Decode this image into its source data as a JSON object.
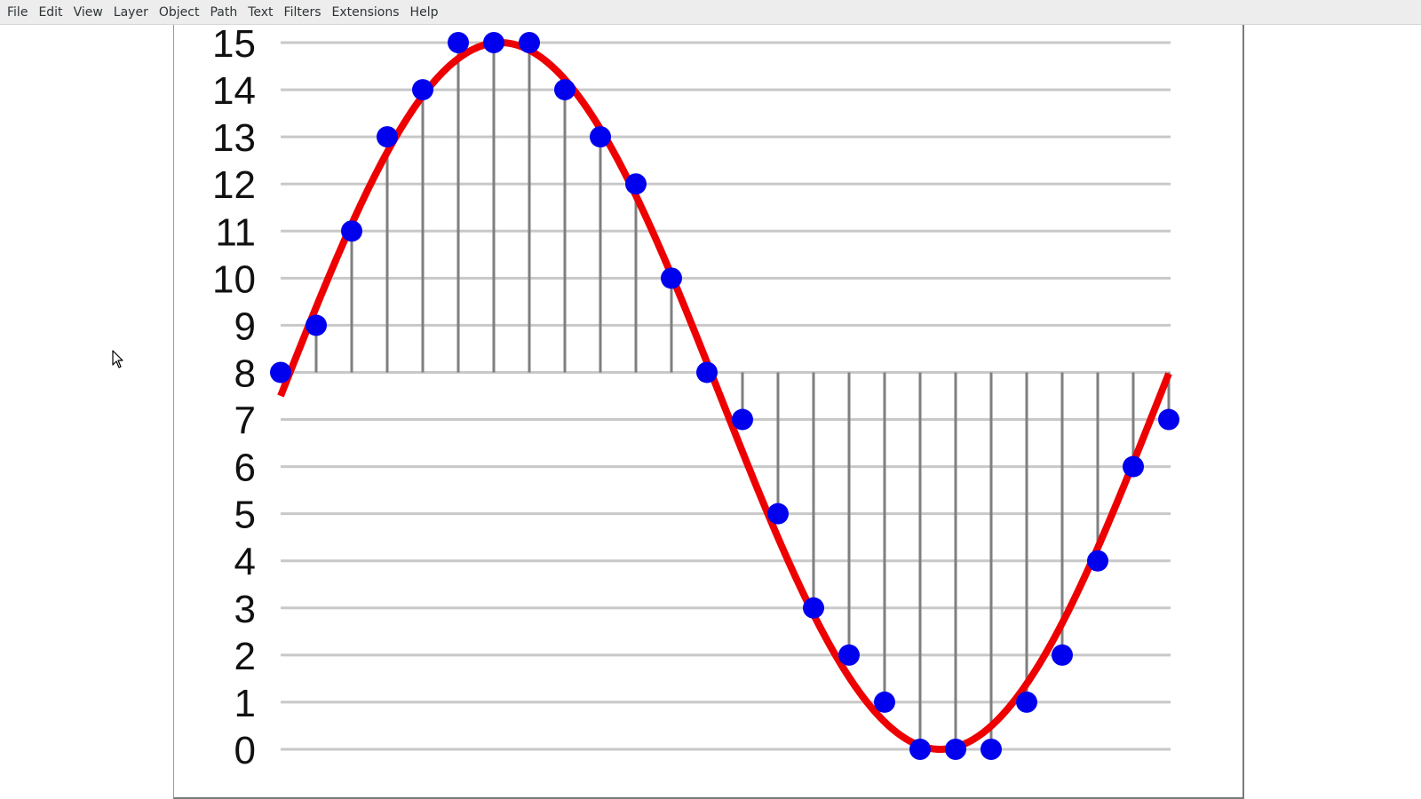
{
  "menubar": {
    "items": [
      "File",
      "Edit",
      "View",
      "Layer",
      "Object",
      "Path",
      "Text",
      "Filters",
      "Extensions",
      "Help"
    ]
  },
  "icons": {
    "cursor": "mouse-pointer-icon"
  },
  "colors": {
    "curve": "#ee0000",
    "points": "#0000ee",
    "stems": "#7f7f7f",
    "grid": "#c8c8c8"
  },
  "chart_data": {
    "type": "line",
    "title": "",
    "xlabel": "",
    "ylabel": "",
    "ylim": [
      0,
      15
    ],
    "yticks": [
      "0",
      "1",
      "2",
      "3",
      "4",
      "5",
      "6",
      "7",
      "8",
      "9",
      "10",
      "11",
      "12",
      "13",
      "14",
      "15"
    ],
    "grid": true,
    "baseline": 8,
    "series": [
      {
        "kind": "continuous-sine",
        "color": "#ee0000",
        "center": 7.5,
        "amplitude": 7.5,
        "period_samples": 24.75,
        "x_range": [
          0,
          25
        ]
      },
      {
        "kind": "sampled-points",
        "color": "#0000ee",
        "x": [
          0,
          1,
          2,
          3,
          4,
          5,
          6,
          7,
          8,
          9,
          10,
          11,
          12,
          13,
          14,
          15,
          16,
          17,
          18,
          19,
          20,
          21,
          22,
          23,
          24,
          25
        ],
        "values": [
          8,
          9,
          11,
          13,
          14,
          15,
          15,
          15,
          14,
          13,
          12,
          10,
          8,
          7,
          5,
          3,
          2,
          1,
          0,
          0,
          0,
          1,
          2,
          4,
          6,
          7
        ]
      }
    ]
  }
}
